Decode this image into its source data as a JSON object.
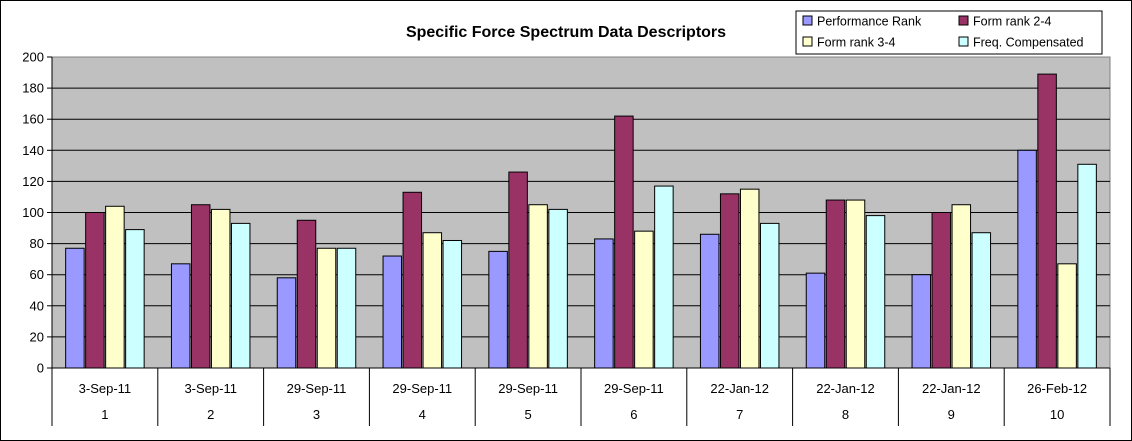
{
  "chart_data": {
    "type": "bar",
    "title": "Specific Force Spectrum Data Descriptors",
    "xlabel": "",
    "ylabel": "",
    "ylim": [
      0,
      200
    ],
    "yticks": [
      0,
      20,
      40,
      60,
      80,
      100,
      120,
      140,
      160,
      180,
      200
    ],
    "grid": true,
    "legend_position": "top-right",
    "categories": [
      "1",
      "2",
      "3",
      "4",
      "5",
      "6",
      "7",
      "8",
      "9",
      "10"
    ],
    "category_dates": [
      "3-Sep-11",
      "3-Sep-11",
      "29-Sep-11",
      "29-Sep-11",
      "29-Sep-11",
      "29-Sep-11",
      "22-Jan-12",
      "22-Jan-12",
      "22-Jan-12",
      "26-Feb-12"
    ],
    "series": [
      {
        "name": "Performance Rank",
        "color": "#9999FF",
        "values": [
          77,
          67,
          58,
          72,
          75,
          83,
          86,
          61,
          60,
          140
        ]
      },
      {
        "name": "Form rank 2-4",
        "color": "#993366",
        "values": [
          100,
          105,
          95,
          113,
          126,
          162,
          112,
          108,
          100,
          189
        ]
      },
      {
        "name": "Form rank 3-4",
        "color": "#FFFFCC",
        "values": [
          104,
          102,
          77,
          87,
          105,
          88,
          115,
          108,
          105,
          67
        ]
      },
      {
        "name": "Freq. Compensated",
        "color": "#CCFFFF",
        "values": [
          89,
          93,
          77,
          82,
          102,
          117,
          93,
          98,
          87,
          131
        ]
      }
    ],
    "plot_background": "#C0C0C0"
  }
}
